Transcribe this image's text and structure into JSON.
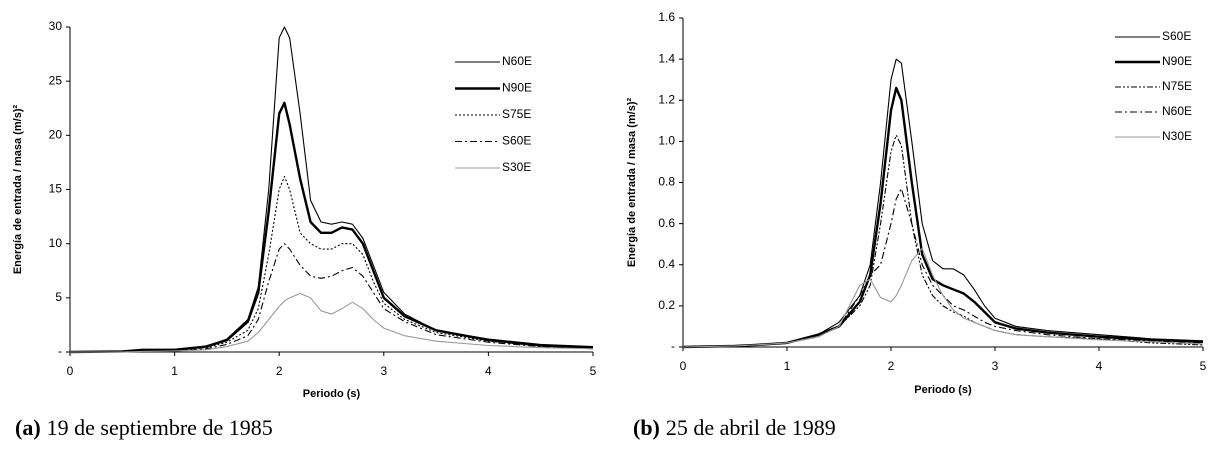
{
  "chart_data": [
    {
      "type": "line",
      "y_label": "Energía de entrada / masa (m/s)²",
      "x_label": "Periodo (s)",
      "caption_label": "(a)",
      "caption": "19 de septiembre de 1985",
      "xlim": [
        0,
        5
      ],
      "xticks": [
        0,
        1,
        2,
        3,
        4,
        5
      ],
      "ylim": [
        0,
        30
      ],
      "yticks": [
        {
          "value": 0,
          "label": "-"
        },
        5,
        10,
        15,
        20,
        25,
        30
      ],
      "grid": false,
      "legend": "upper right",
      "x": [
        0,
        0.5,
        0.7,
        1,
        1.3,
        1.5,
        1.7,
        1.8,
        1.9,
        2.0,
        2.05,
        2.1,
        2.2,
        2.3,
        2.4,
        2.5,
        2.6,
        2.7,
        2.8,
        2.9,
        3.0,
        3.2,
        3.5,
        4,
        4.5,
        5
      ],
      "series": [
        {
          "name": "N60E",
          "color": "#000000",
          "line_style": "solid",
          "values": [
            0,
            0.05,
            0.2,
            0.2,
            0.5,
            1.2,
            3,
            6,
            15,
            29,
            30,
            29,
            22,
            14,
            12,
            11.8,
            12,
            11.8,
            10.5,
            8,
            5.5,
            3.5,
            2,
            1.2,
            0.7,
            0.5
          ]
        },
        {
          "name": "N90E",
          "color": "#000000",
          "line_style": "bold",
          "values": [
            0,
            0.05,
            0.2,
            0.2,
            0.5,
            1.1,
            2.8,
            5.5,
            13,
            22,
            23,
            21,
            16,
            12,
            11,
            11,
            11.5,
            11.3,
            10,
            7.5,
            5,
            3.3,
            2,
            1.1,
            0.6,
            0.4
          ]
        },
        {
          "name": "S75E",
          "color": "#000000",
          "line_style": "dotted",
          "values": [
            0,
            0,
            0.1,
            0.15,
            0.4,
            0.9,
            2,
            4,
            9,
            15,
            16.2,
            15,
            11,
            10,
            9.5,
            9.5,
            10,
            10,
            9,
            6.5,
            4.5,
            3,
            1.8,
            1,
            0.6,
            0.4
          ]
        },
        {
          "name": "S60E",
          "color": "#000000",
          "line_style": "dashdot",
          "values": [
            0,
            0,
            0.1,
            0.1,
            0.3,
            0.7,
            1.5,
            3,
            6.5,
            9.5,
            10,
            9.5,
            8,
            7,
            6.8,
            7,
            7.5,
            7.8,
            7,
            5.5,
            4,
            2.8,
            1.6,
            0.9,
            0.5,
            0.3
          ]
        },
        {
          "name": "S30E",
          "color": "#999999",
          "line_style": "solid",
          "values": [
            0,
            0,
            0.05,
            0.1,
            0.2,
            0.5,
            1,
            1.8,
            3,
            4.2,
            4.7,
            5,
            5.4,
            5,
            3.8,
            3.5,
            4,
            4.6,
            4,
            3,
            2.2,
            1.5,
            1,
            0.6,
            0.4,
            0.3
          ]
        }
      ]
    },
    {
      "type": "line",
      "y_label": "Energía de entrada / masa (m/s)²",
      "x_label": "Periodo (s)",
      "caption_label": "(b)",
      "caption": "25 de abril de 1989",
      "xlim": [
        0,
        5
      ],
      "xticks": [
        0,
        1,
        2,
        3,
        4,
        5
      ],
      "ylim": [
        0,
        1.6
      ],
      "yticks": [
        {
          "value": 0,
          "label": "-"
        },
        0.2,
        0.4,
        0.6,
        0.8,
        {
          "value": 1,
          "label": "1.0"
        },
        1.2,
        1.4,
        1.6
      ],
      "grid": false,
      "legend": "upper right",
      "x": [
        0,
        0.5,
        0.7,
        1,
        1.3,
        1.5,
        1.7,
        1.8,
        1.9,
        2.0,
        2.05,
        2.1,
        2.2,
        2.3,
        2.4,
        2.5,
        2.6,
        2.7,
        2.8,
        2.9,
        3.0,
        3.2,
        3.5,
        4,
        4.5,
        5
      ],
      "series": [
        {
          "name": "S60E",
          "color": "#000000",
          "line_style": "solid",
          "values": [
            0,
            0.005,
            0.01,
            0.02,
            0.06,
            0.12,
            0.25,
            0.4,
            0.8,
            1.3,
            1.4,
            1.38,
            1.0,
            0.6,
            0.42,
            0.38,
            0.38,
            0.35,
            0.28,
            0.2,
            0.14,
            0.1,
            0.08,
            0.06,
            0.04,
            0.03
          ]
        },
        {
          "name": "N90E",
          "color": "#000000",
          "line_style": "bold",
          "values": [
            0,
            0.005,
            0.01,
            0.02,
            0.06,
            0.1,
            0.22,
            0.35,
            0.7,
            1.15,
            1.26,
            1.2,
            0.8,
            0.45,
            0.33,
            0.3,
            0.28,
            0.26,
            0.22,
            0.17,
            0.12,
            0.09,
            0.07,
            0.05,
            0.035,
            0.025
          ]
        },
        {
          "name": "N75E",
          "color": "#000000",
          "line_style": "dashdotdot",
          "values": [
            0,
            0.005,
            0.01,
            0.02,
            0.05,
            0.1,
            0.2,
            0.3,
            0.6,
            0.95,
            1.03,
            0.98,
            0.6,
            0.35,
            0.25,
            0.2,
            0.17,
            0.15,
            0.12,
            0.1,
            0.08,
            0.06,
            0.05,
            0.04,
            0.02,
            0.01
          ]
        },
        {
          "name": "N60E",
          "color": "#000000",
          "line_style": "dashdot",
          "values": [
            0,
            0.005,
            0.01,
            0.02,
            0.05,
            0.1,
            0.25,
            0.35,
            0.4,
            0.6,
            0.72,
            0.77,
            0.6,
            0.4,
            0.3,
            0.25,
            0.2,
            0.18,
            0.15,
            0.12,
            0.1,
            0.08,
            0.06,
            0.04,
            0.03,
            0.02
          ]
        },
        {
          "name": "N30E",
          "color": "#999999",
          "line_style": "solid",
          "values": [
            0,
            0.005,
            0.01,
            0.02,
            0.05,
            0.1,
            0.3,
            0.33,
            0.24,
            0.22,
            0.25,
            0.3,
            0.42,
            0.48,
            0.35,
            0.25,
            0.18,
            0.14,
            0.12,
            0.1,
            0.08,
            0.06,
            0.05,
            0.035,
            0.025,
            0.015
          ]
        }
      ]
    }
  ]
}
